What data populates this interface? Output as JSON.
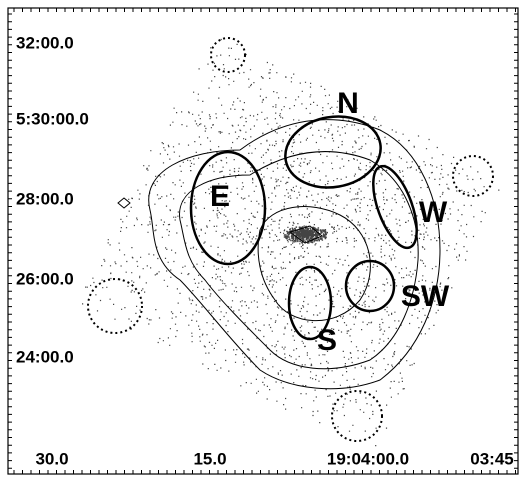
{
  "y_axis_labels": [
    "32:00.0",
    "5:30:00.0",
    "28:00.0",
    "26:00.0",
    "24:00.0"
  ],
  "x_axis_labels": [
    "30.0",
    "15.0",
    "19:04:00.0",
    "03:45"
  ],
  "regions": [
    {
      "label": "N"
    },
    {
      "label": "E"
    },
    {
      "label": "W"
    },
    {
      "label": "SW"
    },
    {
      "label": "S"
    }
  ]
}
